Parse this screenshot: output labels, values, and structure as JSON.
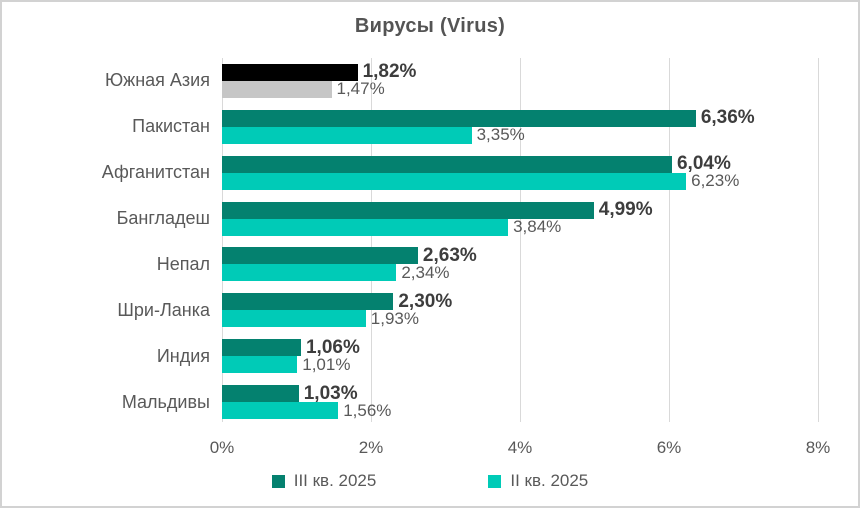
{
  "chart_data": {
    "type": "bar",
    "orientation": "horizontal",
    "title": "Вирусы (Virus)",
    "categories": [
      "Южная Азия",
      "Пакистан",
      "Афганитстан",
      "Бангладеш",
      "Непал",
      "Шри-Ланка",
      "Индия",
      "Мальдивы"
    ],
    "series": [
      {
        "name": "III кв. 2025",
        "color": "#04816F",
        "values": [
          1.82,
          6.36,
          6.04,
          4.99,
          2.63,
          2.3,
          1.06,
          1.03
        ],
        "data_labels": [
          "1,82%",
          "6,36%",
          "6,04%",
          "4,99%",
          "2,63%",
          "2,30%",
          "1,06%",
          "1,03%"
        ]
      },
      {
        "name": "II кв. 2025",
        "color": "#00CBB7",
        "values": [
          1.47,
          3.35,
          6.23,
          3.84,
          2.34,
          1.93,
          1.01,
          1.56
        ],
        "data_labels": [
          "1,47%",
          "3,35%",
          "6,23%",
          "3,84%",
          "2,34%",
          "1,93%",
          "1,01%",
          "1,56%"
        ]
      }
    ],
    "highlight_category_index": 0,
    "highlight_colors": [
      "#000000",
      "#C6C6C6"
    ],
    "xlim": [
      0,
      8
    ],
    "x_ticks": [
      "0%",
      "2%",
      "4%",
      "6%",
      "8%"
    ],
    "grid": "vertical-only",
    "gridline_color": "#d9d9d9",
    "legend_position": "bottom"
  }
}
